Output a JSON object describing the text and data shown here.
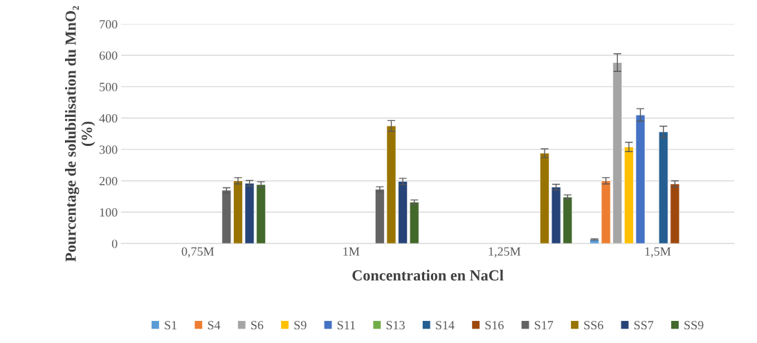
{
  "chart_data": {
    "type": "bar",
    "xlabel": "Concentration en NaCl",
    "ylabel": "Pourcentage de solubilisation du MnO₂ (%)",
    "categories": [
      "0,75M",
      "1M",
      "1,25M",
      "1,5M"
    ],
    "series": [
      {
        "name": "S1",
        "color": "#5b9bd5",
        "values": [
          null,
          null,
          null,
          13
        ],
        "errors": [
          null,
          null,
          null,
          2
        ]
      },
      {
        "name": "S4",
        "color": "#ed7d31",
        "values": [
          null,
          null,
          null,
          200
        ],
        "errors": [
          null,
          null,
          null,
          10
        ]
      },
      {
        "name": "S6",
        "color": "#a5a5a5",
        "values": [
          null,
          null,
          null,
          577
        ],
        "errors": [
          null,
          null,
          null,
          28
        ]
      },
      {
        "name": "S9",
        "color": "#ffc000",
        "values": [
          null,
          null,
          null,
          308
        ],
        "errors": [
          null,
          null,
          null,
          15
        ]
      },
      {
        "name": "S11",
        "color": "#4472c4",
        "values": [
          null,
          null,
          null,
          410
        ],
        "errors": [
          null,
          null,
          null,
          20
        ]
      },
      {
        "name": "S13",
        "color": "#70ad47",
        "values": [
          null,
          null,
          null,
          null
        ],
        "errors": [
          null,
          null,
          null,
          null
        ]
      },
      {
        "name": "S14",
        "color": "#255e91",
        "values": [
          null,
          null,
          null,
          356
        ],
        "errors": [
          null,
          null,
          null,
          18
        ]
      },
      {
        "name": "S16",
        "color": "#9e480e",
        "values": [
          null,
          null,
          null,
          190
        ],
        "errors": [
          null,
          null,
          null,
          10
        ]
      },
      {
        "name": "S17",
        "color": "#636363",
        "values": [
          170,
          173,
          null,
          null
        ],
        "errors": [
          8,
          8,
          null,
          null
        ]
      },
      {
        "name": "SS6",
        "color": "#997300",
        "values": [
          200,
          375,
          288,
          null
        ],
        "errors": [
          10,
          17,
          14,
          null
        ]
      },
      {
        "name": "SS7",
        "color": "#264478",
        "values": [
          192,
          198,
          180,
          null
        ],
        "errors": [
          9,
          10,
          9,
          null
        ]
      },
      {
        "name": "SS9",
        "color": "#43682b",
        "values": [
          188,
          132,
          148,
          null
        ],
        "errors": [
          9,
          7,
          7,
          null
        ]
      }
    ],
    "ylim": [
      0,
      700
    ],
    "yticks": [
      0,
      100,
      200,
      300,
      400,
      500,
      600,
      700
    ],
    "grid": "y",
    "legend": "bottom"
  }
}
